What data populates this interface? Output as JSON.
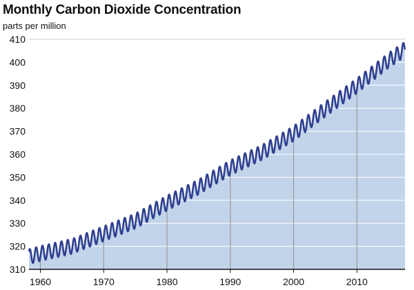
{
  "chart_data": {
    "type": "area",
    "title": "Monthly Carbon Dioxide Concentration",
    "subtitle": "parts per million",
    "xlabel": "",
    "ylabel": "",
    "xlim": [
      1958.2,
      2017.6
    ],
    "ylim": [
      310,
      410
    ],
    "x_ticks": [
      1960,
      1970,
      1980,
      1990,
      2000,
      2010
    ],
    "y_ticks": [
      310,
      320,
      330,
      340,
      350,
      360,
      370,
      380,
      390,
      400,
      410
    ],
    "grid": "horizontal",
    "legend": "none",
    "seasonal_amplitude_ppm": 6.5,
    "trend": {
      "x": [
        1958.2,
        1960,
        1965,
        1970,
        1975,
        1980,
        1985,
        1990,
        1995,
        2000,
        2005,
        2010,
        2015,
        2017.5
      ],
      "y": [
        315.5,
        316.9,
        320.0,
        325.5,
        331.0,
        338.8,
        345.8,
        354.2,
        360.8,
        369.0,
        379.6,
        389.8,
        400.8,
        405.5
      ]
    },
    "colors": {
      "line": "#2e3f8f",
      "area": "#c2d4ea",
      "grid": "#ffffff",
      "axis": "#111111",
      "decade_lines": "#9a9a9a"
    }
  }
}
